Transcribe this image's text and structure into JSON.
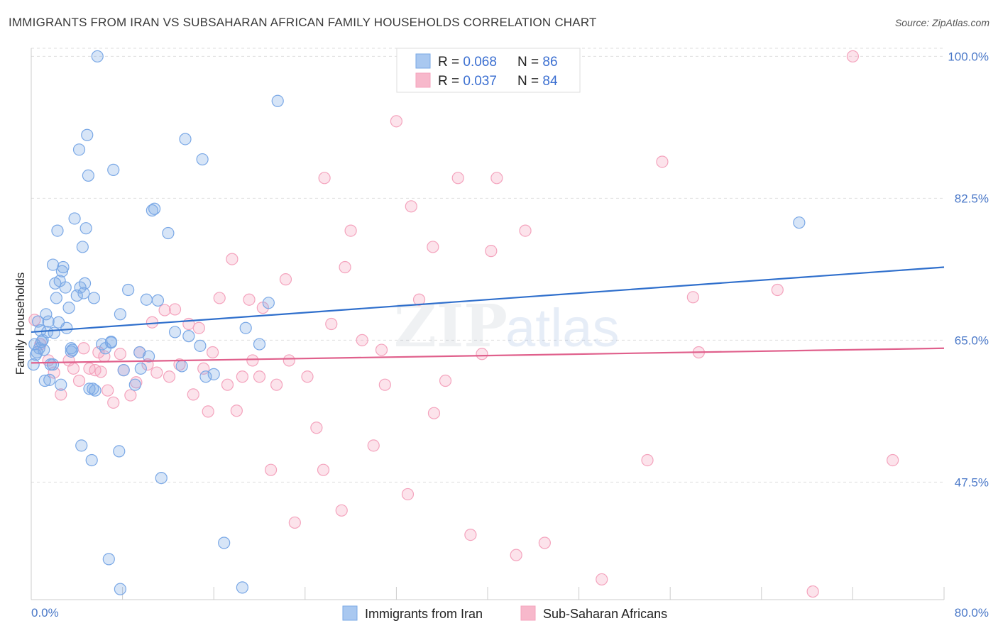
{
  "title": "IMMIGRANTS FROM IRAN VS SUBSAHARAN AFRICAN FAMILY HOUSEHOLDS CORRELATION CHART",
  "source": "Source: ZipAtlas.com",
  "watermark": "ZIPatlas",
  "chart_data": {
    "type": "scatter",
    "title": "IMMIGRANTS FROM IRAN VS SUBSAHARAN AFRICAN FAMILY HOUSEHOLDS CORRELATION CHART",
    "xlabel": "",
    "ylabel": "Family Households",
    "xlim": [
      0,
      80
    ],
    "ylim": [
      33,
      101
    ],
    "x_tick_labels": [
      "0.0%",
      "80.0%"
    ],
    "y_ticks": [
      47.5,
      65.0,
      82.5,
      100.0
    ],
    "y_tick_labels": [
      "47.5%",
      "65.0%",
      "82.5%",
      "100.0%"
    ],
    "legend": [
      {
        "label": "R = ",
        "r": "0.068",
        "n_label": "N = ",
        "n": "86",
        "color": "#a9c8f0"
      },
      {
        "label": "R = ",
        "r": "0.037",
        "n_label": "N = ",
        "n": "84",
        "color": "#f7b8cb"
      }
    ],
    "series": [
      {
        "name": "Immigrants from Iran",
        "color": "#7aa8e6",
        "line_color": "#2f6fcc",
        "trend": {
          "x0": 0,
          "y0": 66.0,
          "x1": 80,
          "y1": 74.0
        },
        "points": [
          [
            0.2,
            62.0
          ],
          [
            0.3,
            64.5
          ],
          [
            0.5,
            63.5
          ],
          [
            0.6,
            67.3
          ],
          [
            0.7,
            64.0
          ],
          [
            0.8,
            66.2
          ],
          [
            1.0,
            65.0
          ],
          [
            1.1,
            63.8
          ],
          [
            1.2,
            60.0
          ],
          [
            1.3,
            68.2
          ],
          [
            1.4,
            66.0
          ],
          [
            1.5,
            67.3
          ],
          [
            1.7,
            62.0
          ],
          [
            1.9,
            74.3
          ],
          [
            2.1,
            72.0
          ],
          [
            2.2,
            70.2
          ],
          [
            2.3,
            78.5
          ],
          [
            2.4,
            67.2
          ],
          [
            2.5,
            72.3
          ],
          [
            2.6,
            59.5
          ],
          [
            2.7,
            73.5
          ],
          [
            2.8,
            74.0
          ],
          [
            3.0,
            71.5
          ],
          [
            3.1,
            66.5
          ],
          [
            3.3,
            69.0
          ],
          [
            3.5,
            64.0
          ],
          [
            3.6,
            63.8
          ],
          [
            3.8,
            80.0
          ],
          [
            4.2,
            88.5
          ],
          [
            4.3,
            71.5
          ],
          [
            4.4,
            52.0
          ],
          [
            4.5,
            76.5
          ],
          [
            4.6,
            70.8
          ],
          [
            4.7,
            72.0
          ],
          [
            4.8,
            78.8
          ],
          [
            4.9,
            90.3
          ],
          [
            5.0,
            85.3
          ],
          [
            5.1,
            59.0
          ],
          [
            5.3,
            50.2
          ],
          [
            5.4,
            59.0
          ],
          [
            5.5,
            70.2
          ],
          [
            5.6,
            58.8
          ],
          [
            5.8,
            100.0
          ],
          [
            6.2,
            64.5
          ],
          [
            6.5,
            64.0
          ],
          [
            6.8,
            38.0
          ],
          [
            7.0,
            64.8
          ],
          [
            7.0,
            64.7
          ],
          [
            7.2,
            86.0
          ],
          [
            7.7,
            51.3
          ],
          [
            7.8,
            68.2
          ],
          [
            7.8,
            34.3
          ],
          [
            8.1,
            61.3
          ],
          [
            8.5,
            71.2
          ],
          [
            9.1,
            59.5
          ],
          [
            9.5,
            63.5
          ],
          [
            9.6,
            61.5
          ],
          [
            10.1,
            70.0
          ],
          [
            10.3,
            63.0
          ],
          [
            10.6,
            81.0
          ],
          [
            10.8,
            81.2
          ],
          [
            11.1,
            69.9
          ],
          [
            11.4,
            48.0
          ],
          [
            12.0,
            78.2
          ],
          [
            12.6,
            66.0
          ],
          [
            13.2,
            61.8
          ],
          [
            13.5,
            89.8
          ],
          [
            13.8,
            65.5
          ],
          [
            14.8,
            64.3
          ],
          [
            15.0,
            87.3
          ],
          [
            15.3,
            60.5
          ],
          [
            16.0,
            60.8
          ],
          [
            16.9,
            40.0
          ],
          [
            18.5,
            34.5
          ],
          [
            18.8,
            66.5
          ],
          [
            20.0,
            64.5
          ],
          [
            20.8,
            69.6
          ],
          [
            21.6,
            94.5
          ],
          [
            67.3,
            79.5
          ],
          [
            1.6,
            60.1
          ],
          [
            0.4,
            63.2
          ],
          [
            1.9,
            62.0
          ],
          [
            0.9,
            64.8
          ],
          [
            2.0,
            65.9
          ],
          [
            3.5,
            63.6
          ],
          [
            4.0,
            70.5
          ]
        ]
      },
      {
        "name": "Sub-Saharan Africans",
        "color": "#f4a3bd",
        "line_color": "#e0608c",
        "trend": {
          "x0": 0,
          "y0": 62.2,
          "x1": 80,
          "y1": 64.0
        },
        "points": [
          [
            0.3,
            67.5
          ],
          [
            1.5,
            62.5
          ],
          [
            2.0,
            61.0
          ],
          [
            2.6,
            58.3
          ],
          [
            3.3,
            62.5
          ],
          [
            3.7,
            61.5
          ],
          [
            4.2,
            60.0
          ],
          [
            4.6,
            64.0
          ],
          [
            5.1,
            61.5
          ],
          [
            5.6,
            61.3
          ],
          [
            5.9,
            63.5
          ],
          [
            6.1,
            61.1
          ],
          [
            6.4,
            63.0
          ],
          [
            6.7,
            58.8
          ],
          [
            7.2,
            57.3
          ],
          [
            7.8,
            63.3
          ],
          [
            8.1,
            61.3
          ],
          [
            8.7,
            58.2
          ],
          [
            9.2,
            59.8
          ],
          [
            9.5,
            63.5
          ],
          [
            10.2,
            62.0
          ],
          [
            10.6,
            67.2
          ],
          [
            11.0,
            61.0
          ],
          [
            11.7,
            68.7
          ],
          [
            12.1,
            60.5
          ],
          [
            12.6,
            68.8
          ],
          [
            13.0,
            62.0
          ],
          [
            13.8,
            67.0
          ],
          [
            14.2,
            58.3
          ],
          [
            14.7,
            66.5
          ],
          [
            15.1,
            61.5
          ],
          [
            15.5,
            56.2
          ],
          [
            15.9,
            63.5
          ],
          [
            16.5,
            70.2
          ],
          [
            17.2,
            59.5
          ],
          [
            17.6,
            75.0
          ],
          [
            18.0,
            56.3
          ],
          [
            18.5,
            60.5
          ],
          [
            19.1,
            70.0
          ],
          [
            19.4,
            62.5
          ],
          [
            20.0,
            60.5
          ],
          [
            20.3,
            69.0
          ],
          [
            21.0,
            49.0
          ],
          [
            21.5,
            59.5
          ],
          [
            22.3,
            72.5
          ],
          [
            22.6,
            62.5
          ],
          [
            23.1,
            42.5
          ],
          [
            24.2,
            60.5
          ],
          [
            25.0,
            54.2
          ],
          [
            25.6,
            49.0
          ],
          [
            25.7,
            85.0
          ],
          [
            26.3,
            67.0
          ],
          [
            27.2,
            44.0
          ],
          [
            27.5,
            74.0
          ],
          [
            28.0,
            78.5
          ],
          [
            29.0,
            65.0
          ],
          [
            30.0,
            52.0
          ],
          [
            30.7,
            63.8
          ],
          [
            31.0,
            59.5
          ],
          [
            32.0,
            92.0
          ],
          [
            33.0,
            46.0
          ],
          [
            33.3,
            81.5
          ],
          [
            34.0,
            70.0
          ],
          [
            35.2,
            76.5
          ],
          [
            35.3,
            56.0
          ],
          [
            36.3,
            60.0
          ],
          [
            37.4,
            85.0
          ],
          [
            38.5,
            41.0
          ],
          [
            39.5,
            63.3
          ],
          [
            40.3,
            76.0
          ],
          [
            40.8,
            85.0
          ],
          [
            42.5,
            38.5
          ],
          [
            43.3,
            78.5
          ],
          [
            45.0,
            40.0
          ],
          [
            50.0,
            35.5
          ],
          [
            54.0,
            50.2
          ],
          [
            55.3,
            87.0
          ],
          [
            58.0,
            70.3
          ],
          [
            58.5,
            63.5
          ],
          [
            65.4,
            71.2
          ],
          [
            68.5,
            34.0
          ],
          [
            72.0,
            100.0
          ],
          [
            75.5,
            50.2
          ],
          [
            0.8,
            64.5
          ]
        ]
      }
    ]
  },
  "bottom_legend": [
    {
      "label": "Immigrants from Iran",
      "color": "#a9c8f0"
    },
    {
      "label": "Sub-Saharan Africans",
      "color": "#f7b8cb"
    }
  ]
}
